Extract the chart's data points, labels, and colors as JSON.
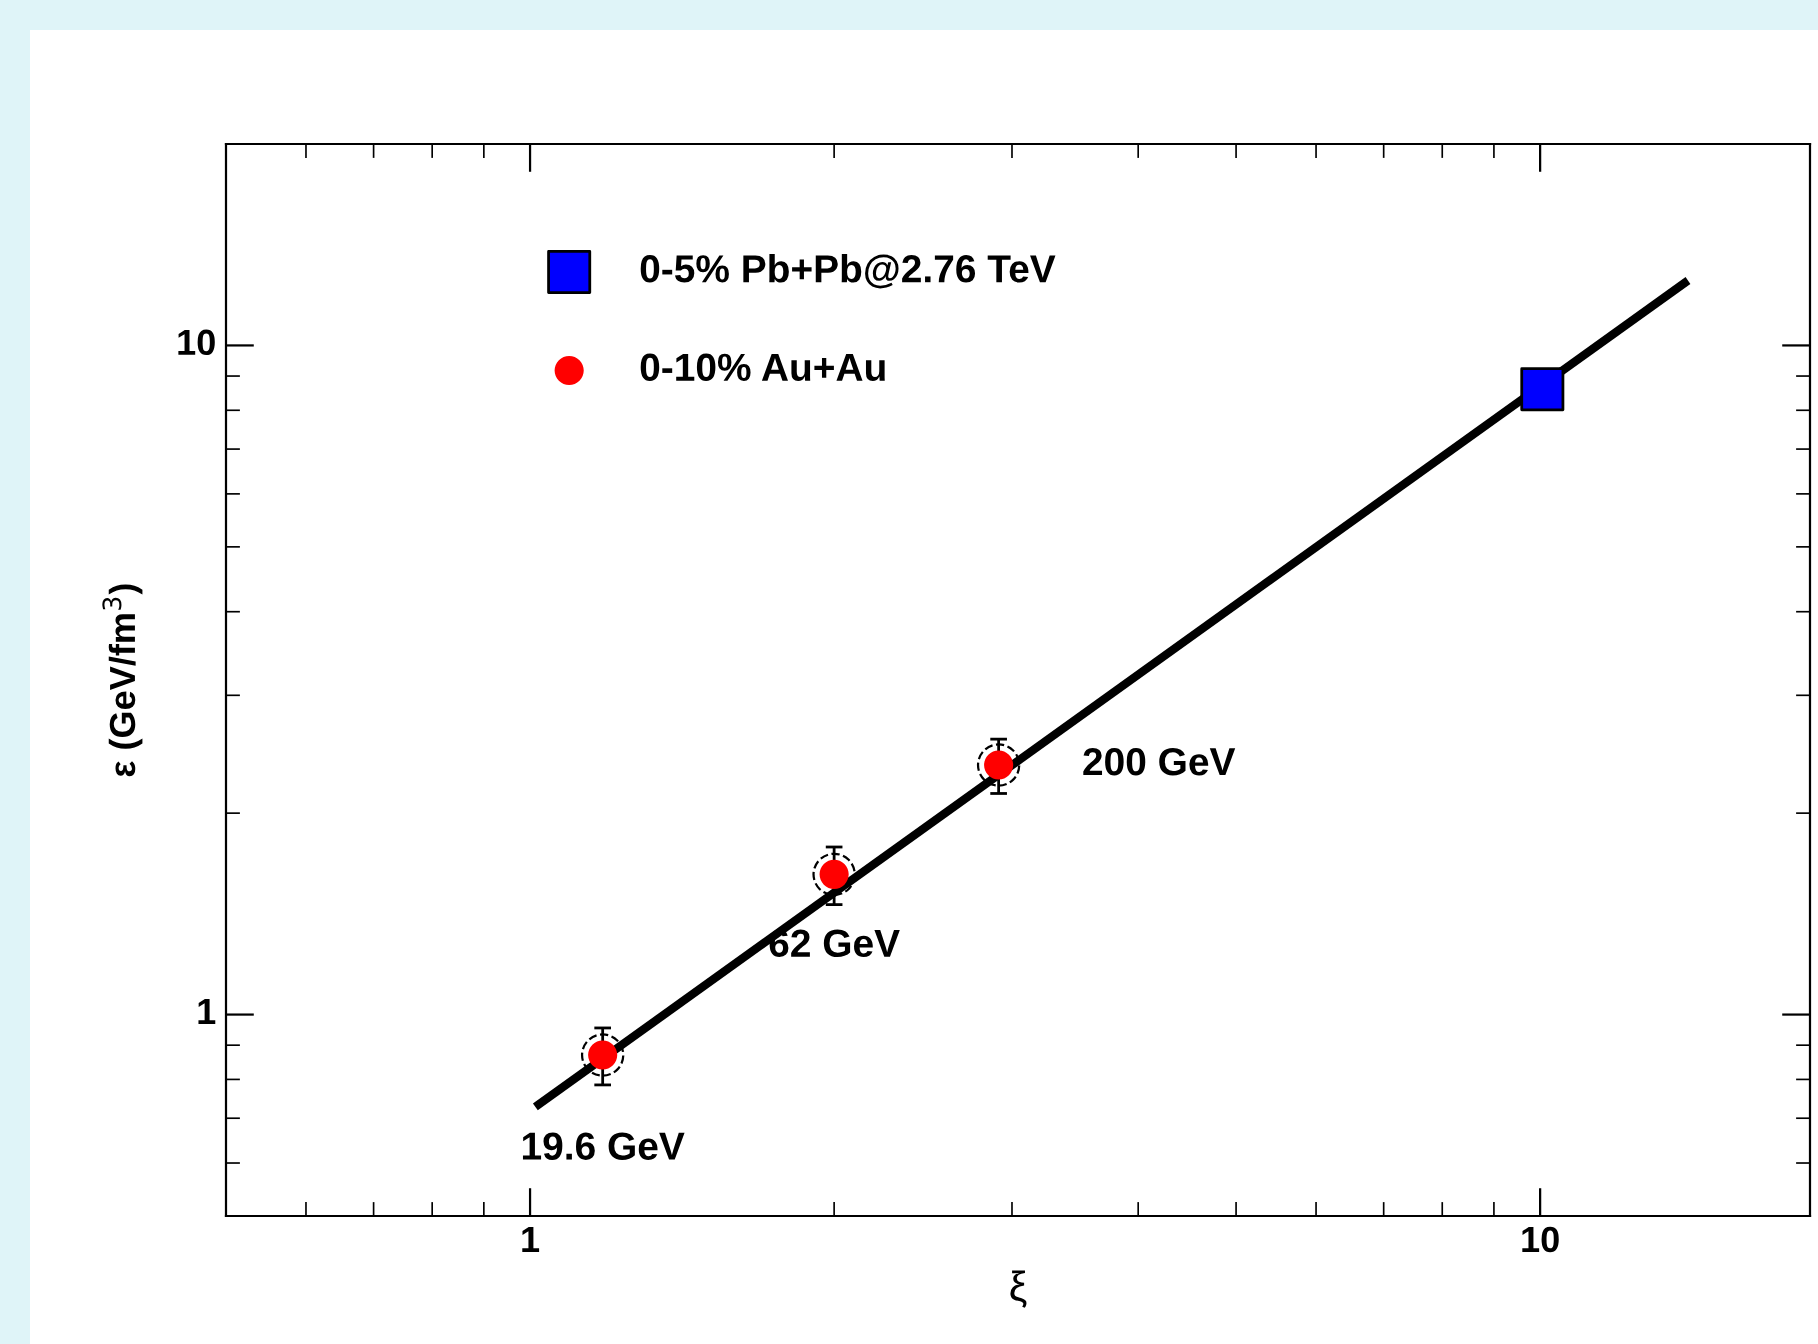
{
  "chart_data": {
    "type": "scatter",
    "xlabel": "ξ",
    "ylabel": "ε (GeV/fm$^{3}$)",
    "log": "xy",
    "xlim": [
      0.5,
      18.5
    ],
    "ylim": [
      0.5,
      20
    ],
    "xticks": [
      1,
      10
    ],
    "yticks": [
      1,
      10
    ],
    "grid": false,
    "legend": "top left",
    "series": [
      {
        "name": "0-5% Pb+Pb@2.76 TeV",
        "color": "#0000ff",
        "marker": "square",
        "x": [
          10.05
        ],
        "values": [
          8.6
        ]
      },
      {
        "name": "0-10% Au+Au",
        "color": "#ff0000",
        "marker": "circle",
        "x": [
          1.18,
          2.0,
          2.91
        ],
        "values": [
          0.87,
          1.62,
          2.36
        ],
        "errors": [
          0.085,
          0.16,
          0.22
        ]
      },
      {
        "type": "line",
        "color": "#000000",
        "marker": "none",
        "line_style": "solid",
        "x": [
          1.02,
          13.9
        ],
        "values": [
          0.734,
          12.4
        ]
      }
    ],
    "annotations": [
      {
        "text": "19.6 GeV",
        "x": 1.18,
        "y": 0.87
      },
      {
        "text": "62 GeV",
        "x": 2.0,
        "y": 1.62
      },
      {
        "text": "200 GeV",
        "x": 2.91,
        "y": 2.36
      }
    ]
  }
}
